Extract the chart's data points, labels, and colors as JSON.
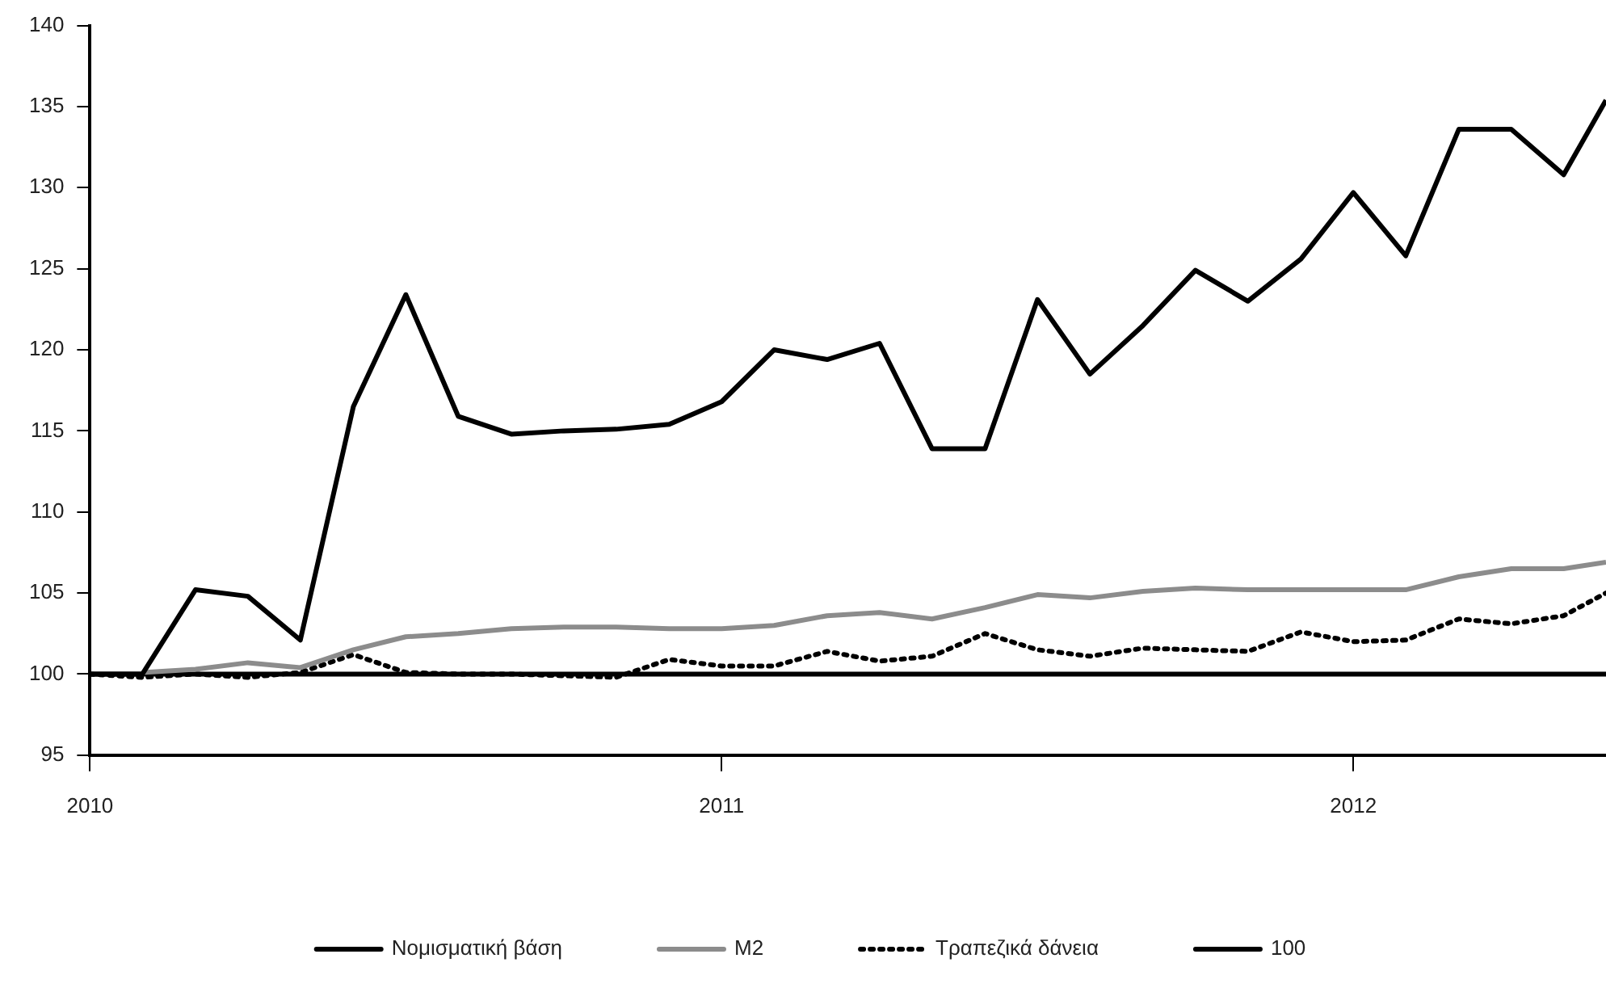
{
  "chart_data": {
    "type": "line",
    "xlim": [
      2010,
      2012.4
    ],
    "xticks": [
      2010,
      2011,
      2012
    ],
    "ylim": [
      95,
      140
    ],
    "yticks": [
      95,
      100,
      105,
      110,
      115,
      120,
      125,
      130,
      135,
      140
    ],
    "grid": false,
    "legend": "bottom",
    "marker": "none",
    "series": [
      {
        "name": "Νομισματική βάση",
        "color": "#000000",
        "line_style": "solid",
        "x": [
          2010,
          2010.083,
          2010.167,
          2010.25,
          2010.333,
          2010.417,
          2010.5,
          2010.583,
          2010.667,
          2010.75,
          2010.833,
          2010.917,
          2011,
          2011.083,
          2011.167,
          2011.25,
          2011.333,
          2011.417,
          2011.5,
          2011.583,
          2011.667,
          2011.75,
          2011.833,
          2011.917,
          2012,
          2012.083,
          2012.167,
          2012.25,
          2012.333,
          2012.4
        ],
        "values": [
          100,
          100,
          105.2,
          104.8,
          102.1,
          116.5,
          123.4,
          115.9,
          114.8,
          115,
          115.1,
          115.4,
          116.8,
          120,
          119.4,
          120.4,
          113.9,
          113.9,
          123.1,
          118.5,
          121.5,
          124.9,
          123,
          125.6,
          129.7,
          125.8,
          133.6,
          133.6,
          130.8,
          135.4
        ]
      },
      {
        "name": "M2",
        "color": "#8c8c8c",
        "line_style": "solid",
        "x": [
          2010.083,
          2010.167,
          2010.25,
          2010.333,
          2010.417,
          2010.5,
          2010.583,
          2010.667,
          2010.75,
          2010.833,
          2010.917,
          2011,
          2011.083,
          2011.167,
          2011.25,
          2011.333,
          2011.417,
          2011.5,
          2011.583,
          2011.667,
          2011.75,
          2011.833,
          2011.917,
          2012,
          2012.083,
          2012.167,
          2012.25,
          2012.333,
          2012.4
        ],
        "values": [
          100.1,
          100.3,
          100.7,
          100.4,
          101.5,
          102.3,
          102.5,
          102.8,
          102.9,
          102.9,
          102.8,
          102.8,
          103,
          103.6,
          103.8,
          103.4,
          104.1,
          104.9,
          104.7,
          105.1,
          105.3,
          105.2,
          105.2,
          105.2,
          105.2,
          106,
          106.5,
          106.5,
          106.9
        ]
      },
      {
        "name": "Τραπεζικά δάνεια",
        "color": "#000000",
        "line_style": "dotted",
        "x": [
          2010,
          2010.083,
          2010.167,
          2010.25,
          2010.333,
          2010.417,
          2010.5,
          2010.583,
          2010.667,
          2010.75,
          2010.833,
          2010.917,
          2011,
          2011.083,
          2011.167,
          2011.25,
          2011.333,
          2011.417,
          2011.5,
          2011.583,
          2011.667,
          2011.75,
          2011.833,
          2011.917,
          2012,
          2012.083,
          2012.167,
          2012.25,
          2012.333,
          2012.4
        ],
        "values": [
          100,
          99.8,
          100,
          99.8,
          100.1,
          101.2,
          100.1,
          100,
          100,
          99.9,
          99.8,
          100.9,
          100.5,
          100.5,
          101.4,
          100.8,
          101.1,
          102.5,
          101.5,
          101.1,
          101.6,
          101.5,
          101.4,
          102.6,
          102,
          102.1,
          103.4,
          103.1,
          103.6,
          105
        ]
      },
      {
        "name": "100",
        "color": "#000000",
        "line_style": "solid",
        "x": [
          2010,
          2012.4
        ],
        "values": [
          100,
          100
        ]
      }
    ]
  }
}
